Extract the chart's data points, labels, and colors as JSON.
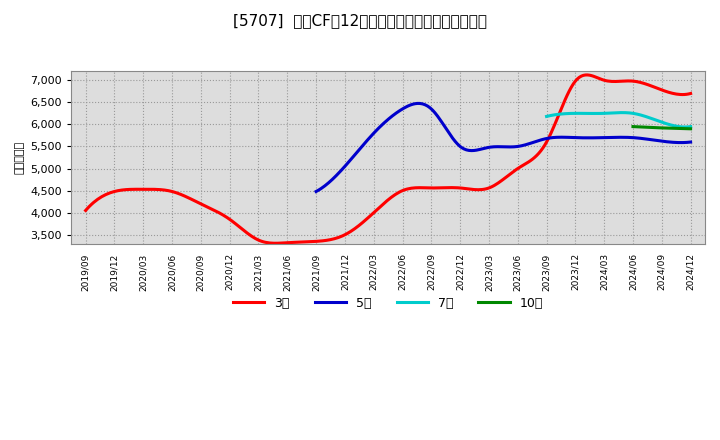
{
  "title": "[5707]  営業CFの12か月移動合計の標準偏差の推移",
  "ylabel": "（百万円）",
  "background_color": "#ffffff",
  "plot_background": "#dddddd",
  "ylim": [
    3300,
    7200
  ],
  "yticks": [
    3500,
    4000,
    4500,
    5000,
    5500,
    6000,
    6500,
    7000
  ],
  "series": {
    "3年": {
      "color": "#ff0000",
      "x": [
        "2019/09",
        "2019/12",
        "2020/03",
        "2020/06",
        "2020/09",
        "2020/12",
        "2021/03",
        "2021/06",
        "2021/09",
        "2021/12",
        "2022/03",
        "2022/06",
        "2022/09",
        "2022/12",
        "2023/03",
        "2023/06",
        "2023/09",
        "2023/12",
        "2024/03",
        "2024/06",
        "2024/09",
        "2024/12"
      ],
      "y": [
        4050,
        4480,
        4530,
        4480,
        4200,
        3850,
        3380,
        3320,
        3350,
        3500,
        4000,
        4500,
        4560,
        4560,
        4560,
        5000,
        5600,
        6980,
        7000,
        6980,
        6780,
        6700
      ]
    },
    "5年": {
      "color": "#0000cc",
      "x": [
        "2021/09",
        "2021/12",
        "2022/03",
        "2022/06",
        "2022/09",
        "2022/12",
        "2023/03",
        "2023/06",
        "2023/09",
        "2023/12",
        "2024/03",
        "2024/06",
        "2024/09",
        "2024/12"
      ],
      "y": [
        4480,
        5050,
        5800,
        6350,
        6350,
        5500,
        5480,
        5500,
        5680,
        5700,
        5700,
        5700,
        5620,
        5600
      ]
    },
    "7年": {
      "color": "#00cccc",
      "x": [
        "2023/09",
        "2023/12",
        "2024/03",
        "2024/06",
        "2024/09",
        "2024/12"
      ],
      "y": [
        6180,
        6250,
        6250,
        6250,
        6050,
        5950
      ]
    },
    "10年": {
      "color": "#008800",
      "x": [
        "2024/06",
        "2024/09",
        "2024/12"
      ],
      "y": [
        5950,
        5920,
        5900
      ]
    }
  },
  "legend_entries": [
    "3年",
    "5年",
    "7年",
    "10年"
  ],
  "legend_colors": [
    "#ff0000",
    "#0000cc",
    "#00cccc",
    "#008800"
  ],
  "xticks": [
    "2019/09",
    "2019/12",
    "2020/03",
    "2020/06",
    "2020/09",
    "2020/12",
    "2021/03",
    "2021/06",
    "2021/09",
    "2021/12",
    "2022/03",
    "2022/06",
    "2022/09",
    "2022/12",
    "2023/03",
    "2023/06",
    "2023/09",
    "2023/12",
    "2024/03",
    "2024/06",
    "2024/09",
    "2024/12"
  ]
}
